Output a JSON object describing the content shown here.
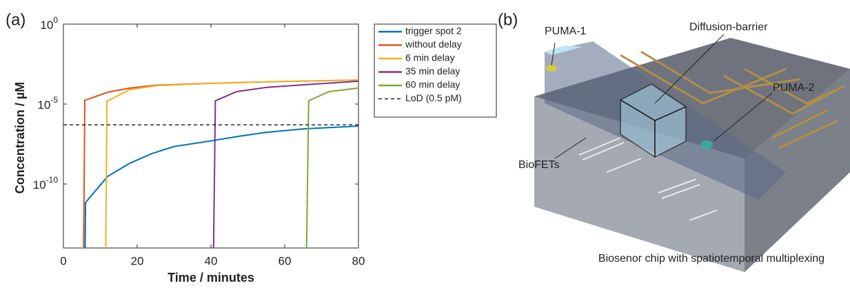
{
  "panel_a_label": "(a)",
  "chart_data": {
    "type": "line",
    "log_scale_y": true,
    "box": true,
    "xlabel": "Time / minutes",
    "ylabel": "Concentration / µM",
    "xlim": [
      0,
      80
    ],
    "xticks": [
      0,
      20,
      40,
      60,
      80
    ],
    "ylim": [
      1e-14,
      1
    ],
    "yticks": [
      {
        "value": 1e-10,
        "label": "10",
        "exponent": "-10"
      },
      {
        "value": 1e-05,
        "label": "10",
        "exponent": "-5"
      },
      {
        "value": 1,
        "label": "10",
        "exponent": "0"
      }
    ],
    "legend": "outside-right",
    "series": [
      {
        "name": "trigger spot 2",
        "color": "#0072bd",
        "x": [
          5.8,
          6.0,
          12,
          18,
          24,
          30,
          40,
          48,
          55,
          65,
          80
        ],
        "values": [
          1e-16,
          7e-12,
          3e-10,
          2e-09,
          8e-09,
          2.2e-08,
          5e-08,
          1e-07,
          1.7e-07,
          2.8e-07,
          4.2e-07
        ]
      },
      {
        "name": "without delay",
        "color": "#d95319",
        "x": [
          5.4,
          5.8,
          12,
          18,
          25,
          40,
          60,
          80
        ],
        "values": [
          1e-16,
          1.7e-05,
          5.5e-05,
          0.0001,
          0.00015,
          0.0002,
          0.00026,
          0.00032
        ]
      },
      {
        "name": "6 min delay",
        "color": "#edb120",
        "x": [
          11.4,
          11.8,
          18,
          25,
          40,
          60,
          80
        ],
        "values": [
          1e-16,
          1.5e-05,
          8e-05,
          0.00014,
          0.0002,
          0.00026,
          0.00032
        ]
      },
      {
        "name": "35 min delay",
        "color": "#7e2f8e",
        "x": [
          40.6,
          41.2,
          47,
          55,
          65,
          80
        ],
        "values": [
          1e-16,
          1.6e-05,
          6e-05,
          0.00011,
          0.00016,
          0.00027
        ]
      },
      {
        "name": "60 min delay",
        "color": "#77ac30",
        "x": [
          65.8,
          66.5,
          72,
          80
        ],
        "values": [
          1e-16,
          1.6e-05,
          6e-05,
          0.0001
        ]
      }
    ],
    "reference_lines": [
      {
        "name": "LoD (0.5 pM)",
        "value": 5e-07,
        "color": "#000000",
        "style": "dashed"
      }
    ]
  },
  "panel_b": {
    "label": "(b)",
    "annotations": [
      "PUMA-1",
      "Diffusion-barrier",
      "PUMA-2",
      "BioFETs"
    ],
    "caption": "Biosenor chip with spatiotemporal multiplexing"
  }
}
